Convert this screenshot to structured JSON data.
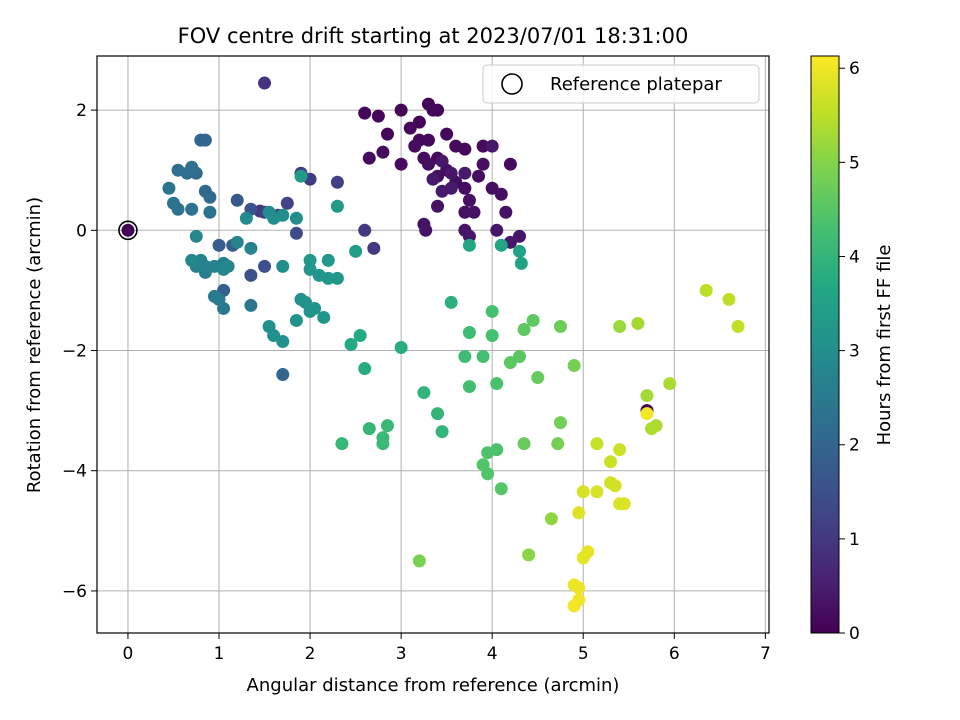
{
  "chart_data": {
    "type": "scatter",
    "title": "FOV centre drift starting at 2023/07/01 18:31:00",
    "xlabel": "Angular distance from reference (arcmin)",
    "ylabel": "Rotation from reference (arcmin)",
    "xlim": [
      -0.34,
      7.04
    ],
    "ylim": [
      -6.7,
      2.9
    ],
    "xticks": [
      0,
      1,
      2,
      3,
      4,
      5,
      6,
      7
    ],
    "yticks": [
      -6,
      -4,
      -2,
      0,
      2
    ],
    "grid": true,
    "legend": {
      "placement": "top-right",
      "entries": [
        "Reference platepar"
      ]
    },
    "reference_point": {
      "x": 0,
      "y": 0
    },
    "colorbar": {
      "label": "Hours from first FF file",
      "min": 0,
      "max": 6.13,
      "ticks": [
        0,
        1,
        2,
        3,
        4,
        5,
        6
      ],
      "colormap": "viridis"
    },
    "series": [
      {
        "points": [
          [
            0,
            0,
            0
          ],
          [
            5.7,
            -3.0,
            0
          ],
          [
            3.2,
            1.8,
            0.05
          ],
          [
            3.3,
            2.1,
            0.05
          ],
          [
            3.4,
            2.0,
            0.05
          ],
          [
            3.0,
            2.0,
            0.08
          ],
          [
            2.85,
            1.6,
            0.1
          ],
          [
            2.6,
            1.95,
            0.1
          ],
          [
            2.75,
            1.9,
            0.1
          ],
          [
            3.35,
            2.0,
            0.1
          ],
          [
            3.1,
            1.7,
            0.12
          ],
          [
            3.2,
            1.5,
            0.12
          ],
          [
            3.5,
            1.6,
            0.12
          ],
          [
            3.3,
            1.5,
            0.12
          ],
          [
            3.6,
            1.4,
            0.15
          ],
          [
            3.4,
            1.2,
            0.15
          ],
          [
            3.7,
            1.35,
            0.15
          ],
          [
            3.9,
            1.4,
            0.15
          ],
          [
            4.2,
            1.1,
            0.18
          ],
          [
            3.0,
            1.1,
            0.18
          ],
          [
            2.8,
            1.3,
            0.18
          ],
          [
            2.65,
            1.2,
            0.18
          ],
          [
            3.15,
            1.4,
            0.2
          ],
          [
            3.25,
            1.2,
            0.2
          ],
          [
            3.3,
            1.1,
            0.2
          ],
          [
            3.5,
            1.0,
            0.2
          ],
          [
            3.4,
            0.9,
            0.22
          ],
          [
            3.6,
            0.8,
            0.22
          ],
          [
            3.7,
            0.7,
            0.22
          ],
          [
            3.85,
            0.9,
            0.22
          ],
          [
            3.9,
            1.1,
            0.25
          ],
          [
            4.0,
            0.7,
            0.25
          ],
          [
            4.1,
            0.6,
            0.25
          ],
          [
            3.75,
            0.5,
            0.28
          ],
          [
            3.8,
            0.3,
            0.28
          ],
          [
            3.7,
            0.3,
            0.28
          ],
          [
            4.15,
            0.3,
            0.3
          ],
          [
            3.4,
            0.4,
            0.3
          ],
          [
            3.25,
            0.1,
            0.32
          ],
          [
            3.27,
            0.0,
            0.32
          ],
          [
            3.7,
            0.0,
            0.35
          ],
          [
            3.75,
            -0.1,
            0.35
          ],
          [
            4.05,
            0.0,
            0.38
          ],
          [
            4.3,
            -0.1,
            0.38
          ],
          [
            4.2,
            -0.2,
            0.4
          ],
          [
            4.0,
            1.4,
            0.4
          ],
          [
            3.45,
            1.15,
            0.4
          ],
          [
            3.55,
            0.95,
            0.4
          ],
          [
            3.45,
            0.65,
            0.42
          ],
          [
            3.55,
            0.7,
            0.42
          ],
          [
            3.35,
            0.85,
            0.42
          ],
          [
            3.7,
            0.95,
            0.45
          ],
          [
            1.5,
            2.45,
            0.9
          ],
          [
            1.45,
            0.32,
            0.95
          ],
          [
            2.6,
            0.0,
            1.0
          ],
          [
            2.7,
            -0.3,
            1.0
          ],
          [
            1.5,
            0.3,
            1.1
          ],
          [
            1.9,
            0.95,
            1.1
          ],
          [
            2.0,
            0.85,
            1.1
          ],
          [
            2.3,
            0.8,
            1.15
          ],
          [
            1.75,
            0.45,
            1.2
          ],
          [
            1.65,
            0.25,
            1.3
          ],
          [
            1.85,
            -0.05,
            1.4
          ],
          [
            1.5,
            -0.6,
            1.5
          ],
          [
            1.35,
            -0.75,
            1.5
          ],
          [
            1.35,
            0.35,
            1.6
          ],
          [
            1.2,
            0.5,
            1.7
          ],
          [
            1.0,
            -0.25,
            1.8
          ],
          [
            1.15,
            -0.25,
            1.8
          ],
          [
            1.05,
            -1.0,
            1.9
          ],
          [
            1.7,
            -2.4,
            2.0
          ],
          [
            0.8,
            1.5,
            2.0
          ],
          [
            0.85,
            1.5,
            2.0
          ],
          [
            0.75,
            0.95,
            2.1
          ],
          [
            0.85,
            0.65,
            2.1
          ],
          [
            0.9,
            0.55,
            2.1
          ],
          [
            0.55,
            1.0,
            2.2
          ],
          [
            0.65,
            0.95,
            2.2
          ],
          [
            0.7,
            1.05,
            2.25
          ],
          [
            0.45,
            0.7,
            2.3
          ],
          [
            0.5,
            0.45,
            2.3
          ],
          [
            0.55,
            0.35,
            2.3
          ],
          [
            0.7,
            0.35,
            2.3
          ],
          [
            0.9,
            0.3,
            2.35
          ],
          [
            1.35,
            -1.25,
            2.4
          ],
          [
            1.0,
            -1.15,
            2.5
          ],
          [
            1.05,
            -1.3,
            2.5
          ],
          [
            0.95,
            -1.1,
            2.5
          ],
          [
            1.05,
            -0.55,
            2.6
          ],
          [
            0.85,
            -0.7,
            2.6
          ],
          [
            0.75,
            -0.6,
            2.65
          ],
          [
            0.8,
            -0.5,
            2.7
          ],
          [
            0.85,
            -0.6,
            2.7
          ],
          [
            1.05,
            -0.6,
            2.7
          ],
          [
            0.95,
            -0.6,
            2.7
          ],
          [
            1.2,
            -0.2,
            2.75
          ],
          [
            1.35,
            -0.3,
            2.75
          ],
          [
            1.05,
            -0.65,
            2.8
          ],
          [
            1.1,
            -0.6,
            2.8
          ],
          [
            0.7,
            -0.5,
            2.8
          ],
          [
            0.75,
            -0.1,
            2.85
          ],
          [
            1.3,
            0.2,
            2.9
          ],
          [
            1.55,
            0.3,
            2.95
          ],
          [
            1.6,
            0.2,
            3.0
          ],
          [
            1.7,
            0.25,
            3.0
          ],
          [
            1.85,
            0.2,
            3.0
          ],
          [
            1.7,
            -0.6,
            3.0
          ],
          [
            1.55,
            -1.6,
            3.05
          ],
          [
            1.6,
            -1.75,
            3.05
          ],
          [
            1.7,
            -1.85,
            3.1
          ],
          [
            1.9,
            -1.15,
            3.1
          ],
          [
            1.95,
            -1.2,
            3.1
          ],
          [
            1.85,
            -1.5,
            3.1
          ],
          [
            2.0,
            -1.35,
            3.15
          ],
          [
            2.05,
            -1.3,
            3.15
          ],
          [
            2.15,
            -1.45,
            3.2
          ],
          [
            2.0,
            -0.65,
            3.2
          ],
          [
            2.1,
            -0.75,
            3.2
          ],
          [
            2.2,
            -0.8,
            3.2
          ],
          [
            2.3,
            -0.8,
            3.25
          ],
          [
            2.2,
            -0.5,
            3.25
          ],
          [
            2.0,
            -0.5,
            3.25
          ],
          [
            1.9,
            0.9,
            3.3
          ],
          [
            2.3,
            0.4,
            3.3
          ],
          [
            2.5,
            -0.35,
            3.35
          ],
          [
            4.3,
            -0.35,
            3.5
          ],
          [
            4.32,
            -0.55,
            3.55
          ],
          [
            4.1,
            -0.25,
            3.6
          ],
          [
            3.75,
            -0.25,
            3.65
          ],
          [
            2.45,
            -1.9,
            3.7
          ],
          [
            2.55,
            -1.75,
            3.7
          ],
          [
            2.6,
            -2.3,
            3.75
          ],
          [
            3.0,
            -1.95,
            3.8
          ],
          [
            3.55,
            -1.2,
            3.9
          ],
          [
            3.25,
            -2.7,
            4.0
          ],
          [
            3.4,
            -3.05,
            4.0
          ],
          [
            3.45,
            -3.35,
            4.0
          ],
          [
            2.35,
            -3.55,
            4.05
          ],
          [
            2.65,
            -3.3,
            4.05
          ],
          [
            2.8,
            -3.45,
            4.1
          ],
          [
            2.8,
            -3.55,
            4.1
          ],
          [
            2.85,
            -3.25,
            4.1
          ],
          [
            3.75,
            -1.7,
            4.2
          ],
          [
            3.7,
            -2.1,
            4.2
          ],
          [
            3.75,
            -2.6,
            4.25
          ],
          [
            3.9,
            -2.1,
            4.25
          ],
          [
            4.0,
            -1.75,
            4.3
          ],
          [
            4.0,
            -1.35,
            4.3
          ],
          [
            4.05,
            -2.55,
            4.35
          ],
          [
            3.95,
            -3.7,
            4.4
          ],
          [
            4.05,
            -3.65,
            4.4
          ],
          [
            3.9,
            -3.9,
            4.45
          ],
          [
            3.95,
            -4.05,
            4.45
          ],
          [
            4.1,
            -4.3,
            4.5
          ],
          [
            4.2,
            -2.2,
            4.55
          ],
          [
            4.3,
            -2.1,
            4.55
          ],
          [
            4.35,
            -1.65,
            4.6
          ],
          [
            4.45,
            -1.5,
            4.6
          ],
          [
            4.5,
            -2.45,
            4.65
          ],
          [
            4.35,
            -3.55,
            4.7
          ],
          [
            4.75,
            -1.6,
            4.75
          ],
          [
            4.75,
            -3.2,
            4.8
          ],
          [
            4.72,
            -3.55,
            4.85
          ],
          [
            4.9,
            -2.25,
            4.85
          ],
          [
            3.2,
            -5.5,
            4.9
          ],
          [
            4.4,
            -5.4,
            5.05
          ],
          [
            4.65,
            -4.8,
            5.1
          ],
          [
            5.4,
            -1.6,
            5.2
          ],
          [
            5.6,
            -1.55,
            5.3
          ],
          [
            5.7,
            -2.75,
            5.3
          ],
          [
            5.95,
            -2.55,
            5.35
          ],
          [
            5.8,
            -3.25,
            5.35
          ],
          [
            5.75,
            -3.3,
            5.4
          ],
          [
            6.35,
            -1.0,
            5.5
          ],
          [
            6.6,
            -1.15,
            5.5
          ],
          [
            6.7,
            -1.6,
            5.55
          ],
          [
            5.15,
            -3.55,
            5.6
          ],
          [
            5.3,
            -3.85,
            5.65
          ],
          [
            5.4,
            -3.65,
            5.65
          ],
          [
            5.3,
            -4.2,
            5.7
          ],
          [
            5.35,
            -4.25,
            5.7
          ],
          [
            5.0,
            -4.35,
            5.75
          ],
          [
            5.15,
            -4.35,
            5.75
          ],
          [
            5.4,
            -4.55,
            5.8
          ],
          [
            5.45,
            -4.55,
            5.8
          ],
          [
            4.95,
            -4.7,
            5.85
          ],
          [
            5.05,
            -5.35,
            5.9
          ],
          [
            5.0,
            -5.45,
            5.9
          ],
          [
            4.9,
            -5.9,
            5.95
          ],
          [
            4.95,
            -5.95,
            5.95
          ],
          [
            4.95,
            -6.15,
            6.0
          ],
          [
            4.9,
            -6.25,
            6.05
          ],
          [
            5.7,
            -3.05,
            6.05
          ]
        ]
      }
    ]
  }
}
